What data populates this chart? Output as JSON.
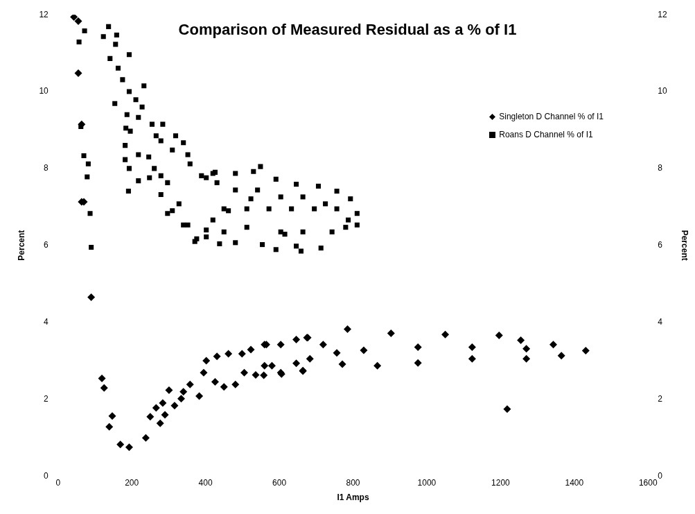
{
  "chart_data": {
    "type": "scatter",
    "title": "Comparison of Measured Residual as a % of I1",
    "xlabel": "I1 Amps",
    "ylabel": "Percent",
    "y2label": "Percent",
    "xlim": [
      0,
      1600
    ],
    "xticks": [
      0,
      200,
      400,
      600,
      800,
      1000,
      1200,
      1400,
      1600
    ],
    "ylim": [
      0,
      12
    ],
    "yticks": [
      0,
      2,
      4,
      6,
      8,
      10,
      12
    ],
    "y2lim": [
      0,
      12
    ],
    "y2ticks": [
      0,
      2,
      4,
      6,
      8,
      10,
      12
    ],
    "grid": false,
    "legend": "right",
    "series": [
      {
        "name": "Singleton D Channel % of I1",
        "color": "#000000",
        "marker": "diamond",
        "x": [
          43,
          55,
          55,
          64,
          64,
          70,
          90,
          119,
          125,
          147,
          139,
          169,
          193,
          238,
          250,
          277,
          290,
          266,
          284,
          301,
          316,
          334,
          340,
          358,
          383,
          395,
          402,
          431,
          426,
          450,
          462,
          481,
          499,
          523,
          505,
          536,
          560,
          560,
          604,
          604,
          646,
          646,
          664,
          677,
          565,
          675,
          785,
          903,
          1050,
          1196,
          1255,
          1343,
          1431,
          580,
          683,
          771,
          866,
          976,
          1123,
          1270,
          1365,
          829,
          976,
          1123,
          1270,
          756,
          719,
          558,
          606,
          664,
          1218
        ],
        "values": [
          11.94,
          11.83,
          10.48,
          9.15,
          7.13,
          7.13,
          4.65,
          2.54,
          2.29,
          1.56,
          1.28,
          0.82,
          0.75,
          0.99,
          1.54,
          1.37,
          1.59,
          1.77,
          1.9,
          2.23,
          1.83,
          2.01,
          2.19,
          2.38,
          2.08,
          2.69,
          3.0,
          3.11,
          2.45,
          2.32,
          3.18,
          2.38,
          3.18,
          3.29,
          2.69,
          2.63,
          3.42,
          2.87,
          2.69,
          3.42,
          3.55,
          2.93,
          2.74,
          3.6,
          3.42,
          3.6,
          3.82,
          3.71,
          3.68,
          3.66,
          3.53,
          3.42,
          3.26,
          2.87,
          3.05,
          2.91,
          2.87,
          2.94,
          3.05,
          3.05,
          3.13,
          3.27,
          3.35,
          3.35,
          3.31,
          3.2,
          3.42,
          2.62,
          2.65,
          2.73,
          1.74
        ]
      },
      {
        "name": "Roans D Channel % of I1",
        "color": "#000000",
        "marker": "square",
        "x": [
          72,
          57,
          62,
          70,
          82,
          79,
          87,
          90,
          137,
          123,
          159,
          156,
          193,
          141,
          163,
          175,
          233,
          193,
          154,
          211,
          228,
          187,
          218,
          184,
          255,
          284,
          196,
          266,
          279,
          319,
          340,
          182,
          310,
          246,
          218,
          352,
          182,
          193,
          261,
          279,
          358,
          218,
          191,
          248,
          297,
          402,
          420,
          549,
          297,
          328,
          371,
          352,
          389,
          426,
          481,
          530,
          591,
          646,
          706,
          756,
          793,
          811,
          811,
          780,
          743,
          713,
          659,
          591,
          554,
          481,
          438,
          402,
          450,
          512,
          572,
          633,
          695,
          756,
          512,
          604,
          664,
          481,
          541,
          604,
          664,
          725,
          787,
          420,
          450,
          279,
          310,
          340,
          376,
          402,
          462,
          523,
          615,
          646,
          431
        ],
        "values": [
          11.58,
          11.29,
          9.09,
          8.33,
          8.12,
          7.78,
          6.83,
          5.95,
          11.69,
          11.43,
          11.47,
          11.23,
          10.96,
          10.86,
          10.61,
          10.31,
          10.15,
          10.0,
          9.69,
          9.79,
          9.6,
          9.4,
          9.33,
          9.05,
          9.15,
          9.15,
          8.97,
          8.85,
          8.72,
          8.85,
          8.67,
          8.6,
          8.48,
          8.3,
          8.36,
          8.36,
          8.23,
          8.0,
          8.0,
          7.81,
          8.12,
          7.68,
          7.41,
          7.76,
          7.63,
          7.76,
          7.87,
          8.05,
          6.83,
          7.08,
          6.1,
          6.53,
          7.81,
          7.9,
          7.87,
          7.92,
          7.72,
          7.59,
          7.54,
          7.41,
          7.21,
          6.83,
          6.53,
          6.47,
          6.35,
          5.93,
          5.85,
          5.89,
          6.02,
          6.07,
          6.04,
          6.22,
          6.95,
          6.95,
          6.95,
          6.95,
          6.95,
          6.95,
          6.47,
          6.35,
          6.35,
          7.44,
          7.44,
          7.26,
          7.26,
          7.08,
          6.66,
          6.66,
          6.35,
          7.32,
          6.9,
          6.53,
          6.17,
          6.4,
          6.9,
          7.21,
          6.29,
          5.98,
          7.63
        ]
      }
    ]
  }
}
